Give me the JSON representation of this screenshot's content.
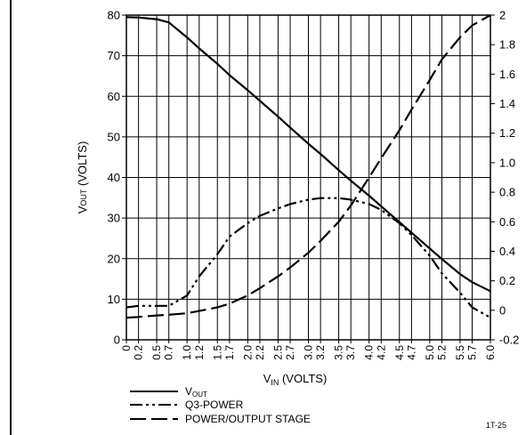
{
  "chart_data": {
    "type": "line",
    "x": [
      0,
      0.2,
      0.5,
      0.7,
      1.0,
      1.2,
      1.5,
      1.7,
      2.0,
      2.2,
      2.5,
      2.7,
      3.0,
      3.2,
      3.5,
      3.7,
      4.0,
      4.2,
      4.5,
      4.7,
      5.0,
      5.2,
      5.5,
      5.7,
      6.0
    ],
    "x_tick_labels": [
      "0",
      "0.2",
      "0.5",
      "0.7",
      "1.0",
      "1.2",
      "1.5",
      "1.7",
      "2.0",
      "2.2",
      "2.5",
      "2.7",
      "3.0",
      "3.2",
      "3.5",
      "3.7",
      "4.0",
      "4.2",
      "4.5",
      "4.7",
      "5.0",
      "5.2",
      "5.5",
      "5.7",
      "6.0"
    ],
    "xlim": [
      0,
      6.0
    ],
    "ylim": [
      0,
      80
    ],
    "y_ticks": [
      0,
      10,
      20,
      30,
      40,
      50,
      60,
      70,
      80
    ],
    "y2lim": [
      -0.2,
      2.0
    ],
    "y2_ticks": [
      "-0.2",
      "0",
      "0.2",
      "0.4",
      "0.6",
      "0.8",
      "1.0",
      "1.2",
      "1.4",
      "1.6",
      "1.8",
      "2"
    ],
    "xlabel_main": "V",
    "xlabel_sub": "IN",
    "xlabel_unit": " (VOLTS)",
    "ylabel_main": "V",
    "ylabel_sub": "OUT",
    "ylabel_unit": " (VOLTS)",
    "grid": true,
    "legend_position": "bottom-left",
    "series": [
      {
        "name": "VOUT",
        "legend_main": "V",
        "legend_sub": "OUT",
        "axis": "left",
        "style": "solid",
        "values": [
          79.5,
          79.4,
          79.0,
          78.2,
          74.5,
          71.8,
          68.0,
          65.2,
          61.5,
          58.9,
          55.0,
          52.3,
          48.3,
          45.8,
          41.8,
          39.2,
          35.5,
          32.9,
          29.0,
          26.4,
          22.5,
          19.9,
          16.2,
          14.2,
          12.0
        ]
      },
      {
        "name": "Q3-POWER",
        "axis": "right",
        "style": "dash-dot-dot",
        "values": [
          0.02,
          0.03,
          0.03,
          0.03,
          0.1,
          0.23,
          0.38,
          0.5,
          0.59,
          0.64,
          0.69,
          0.72,
          0.75,
          0.76,
          0.76,
          0.75,
          0.72,
          0.68,
          0.59,
          0.51,
          0.37,
          0.25,
          0.12,
          0.02,
          -0.05
        ]
      },
      {
        "name": "POWER/OUTPUT STAGE",
        "axis": "right",
        "style": "long-dash",
        "values": [
          -0.05,
          -0.045,
          -0.035,
          -0.03,
          -0.02,
          -0.005,
          0.02,
          0.045,
          0.1,
          0.15,
          0.23,
          0.29,
          0.39,
          0.47,
          0.6,
          0.71,
          0.9,
          1.03,
          1.22,
          1.36,
          1.56,
          1.7,
          1.85,
          1.93,
          2.0
        ]
      }
    ]
  },
  "footnote": "1T-25"
}
